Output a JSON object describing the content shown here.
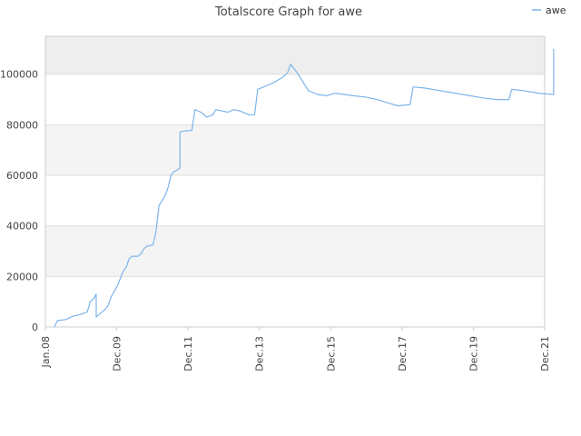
{
  "chart_data": {
    "type": "line",
    "title": "Totalscore Graph for awe",
    "xlabel": "",
    "ylabel": "",
    "legend": {
      "placement": "top-right",
      "entries": [
        "awe"
      ]
    },
    "grid": true,
    "x_axis": {
      "kind": "date",
      "min": "2008-01",
      "max": "2021-12",
      "ticks": [
        "Jan.08",
        "Dec.09",
        "Dec.11",
        "Dec.13",
        "Dec.15",
        "Dec.17",
        "Dec.19",
        "Dec.21"
      ]
    },
    "y_axis": {
      "min": 0,
      "max": 115000,
      "ticks": [
        0,
        20000,
        40000,
        60000,
        80000,
        100000
      ],
      "tick_labels": [
        "0",
        "20000",
        "40000",
        "60000",
        "80000",
        "100000"
      ]
    },
    "colors": {
      "line": "#7cb5ec",
      "band_dark": "#eeeeee",
      "band_light": "#f4f4f4",
      "axis": "#cccccc",
      "grid": "#dddddd"
    },
    "series": [
      {
        "name": "awe",
        "points": [
          [
            "2008-04",
            0
          ],
          [
            "2008-05",
            2500
          ],
          [
            "2008-08",
            3000
          ],
          [
            "2008-10",
            4200
          ],
          [
            "2009-01",
            5000
          ],
          [
            "2009-03",
            6000
          ],
          [
            "2009-04",
            10000
          ],
          [
            "2009-05",
            11000
          ],
          [
            "2009-06",
            13000
          ],
          [
            "2009-06",
            4000
          ],
          [
            "2009-07",
            5000
          ],
          [
            "2009-08",
            6000
          ],
          [
            "2009-09",
            7000
          ],
          [
            "2009-10",
            8500
          ],
          [
            "2009-11",
            12000
          ],
          [
            "2009-12",
            14000
          ],
          [
            "2010-01",
            16000
          ],
          [
            "2010-02",
            19000
          ],
          [
            "2010-03",
            22000
          ],
          [
            "2010-04",
            23500
          ],
          [
            "2010-05",
            27000
          ],
          [
            "2010-06",
            28000
          ],
          [
            "2010-08",
            28000
          ],
          [
            "2010-09",
            29000
          ],
          [
            "2010-10",
            31000
          ],
          [
            "2010-11",
            32000
          ],
          [
            "2011-01",
            32500
          ],
          [
            "2011-02",
            38000
          ],
          [
            "2011-03",
            48000
          ],
          [
            "2011-04",
            50000
          ],
          [
            "2011-05",
            52000
          ],
          [
            "2011-06",
            55000
          ],
          [
            "2011-07",
            60000
          ],
          [
            "2011-08",
            61500
          ],
          [
            "2011-09",
            62000
          ],
          [
            "2011-10",
            63000
          ],
          [
            "2011-10",
            77000
          ],
          [
            "2011-11",
            77500
          ],
          [
            "2012-02",
            77800
          ],
          [
            "2012-03",
            86000
          ],
          [
            "2012-05",
            85000
          ],
          [
            "2012-07",
            83000
          ],
          [
            "2012-09",
            84000
          ],
          [
            "2012-10",
            86000
          ],
          [
            "2012-12",
            85500
          ],
          [
            "2013-02",
            85000
          ],
          [
            "2013-04",
            86000
          ],
          [
            "2013-06",
            85500
          ],
          [
            "2013-09",
            84000
          ],
          [
            "2013-11",
            84000
          ],
          [
            "2013-12",
            94000
          ],
          [
            "2014-02",
            95000
          ],
          [
            "2014-05",
            96500
          ],
          [
            "2014-08",
            98500
          ],
          [
            "2014-10",
            100500
          ],
          [
            "2014-11",
            104000
          ],
          [
            "2015-01",
            101000
          ],
          [
            "2015-05",
            93500
          ],
          [
            "2015-08",
            92000
          ],
          [
            "2015-11",
            91500
          ],
          [
            "2016-02",
            92500
          ],
          [
            "2016-05",
            92000
          ],
          [
            "2016-08",
            91500
          ],
          [
            "2016-12",
            91000
          ],
          [
            "2017-04",
            90000
          ],
          [
            "2017-08",
            88500
          ],
          [
            "2017-11",
            87500
          ],
          [
            "2018-03",
            88000
          ],
          [
            "2018-04",
            95000
          ],
          [
            "2018-08",
            94500
          ],
          [
            "2019-01",
            93500
          ],
          [
            "2019-06",
            92500
          ],
          [
            "2019-11",
            91500
          ],
          [
            "2020-04",
            90500
          ],
          [
            "2020-08",
            90000
          ],
          [
            "2020-12",
            90000
          ],
          [
            "2021-01",
            94000
          ],
          [
            "2021-05",
            93500
          ],
          [
            "2021-10",
            92500
          ],
          [
            "2022-03",
            92000
          ],
          [
            "2022-03",
            110000
          ]
        ]
      }
    ]
  }
}
